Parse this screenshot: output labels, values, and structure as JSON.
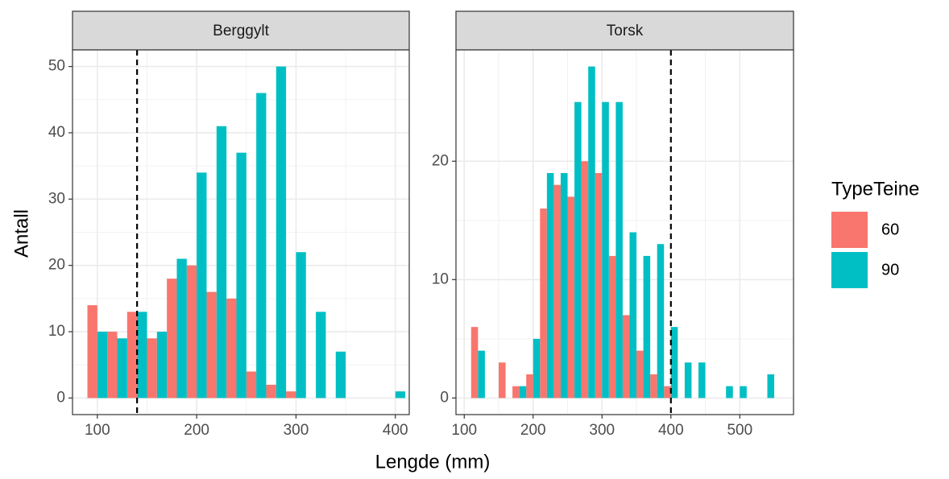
{
  "chart_data": [
    {
      "type": "bar",
      "title": "Berggylt",
      "x": [
        100,
        120,
        140,
        160,
        180,
        200,
        220,
        240,
        260,
        280,
        300,
        320,
        340,
        400
      ],
      "series": [
        {
          "name": "60",
          "color": "#f8766d",
          "values": [
            14,
            10,
            13,
            9,
            18,
            20,
            16,
            15,
            4,
            2,
            1,
            0,
            0,
            0
          ]
        },
        {
          "name": "90",
          "color": "#00bfc4",
          "values": [
            10,
            9,
            13,
            10,
            21,
            34,
            41,
            37,
            46,
            50,
            22,
            13,
            7,
            1
          ]
        }
      ],
      "xlim": [
        75,
        414
      ],
      "xticks": [
        100,
        200,
        300,
        400
      ],
      "ylim": [
        -2.5,
        52.5
      ],
      "yticks": [
        0,
        10,
        20,
        30,
        40,
        50
      ],
      "vline": 140,
      "grid": true
    },
    {
      "type": "bar",
      "title": "Torsk",
      "x": [
        120,
        160,
        180,
        200,
        220,
        240,
        260,
        280,
        300,
        320,
        340,
        360,
        380,
        400,
        420,
        440,
        480,
        500,
        540
      ],
      "series": [
        {
          "name": "60",
          "color": "#f8766d",
          "values": [
            6,
            3,
            1,
            2,
            16,
            18,
            17,
            20,
            19,
            12,
            7,
            4,
            2,
            1,
            0,
            0,
            0,
            0,
            0
          ]
        },
        {
          "name": "90",
          "color": "#00bfc4",
          "values": [
            4,
            0,
            1,
            5,
            19,
            19,
            25,
            28,
            25,
            25,
            14,
            12,
            13,
            6,
            3,
            3,
            1,
            1,
            2
          ]
        }
      ],
      "xlim": [
        88,
        578
      ],
      "xticks": [
        100,
        200,
        300,
        400,
        500
      ],
      "ylim": [
        -1.4,
        29.4
      ],
      "yticks": [
        0,
        10,
        20
      ],
      "vline": 400,
      "grid": true
    }
  ],
  "x_label": "Lengde (mm)",
  "y_label": "Antall",
  "legend_title": "TypeTeine"
}
